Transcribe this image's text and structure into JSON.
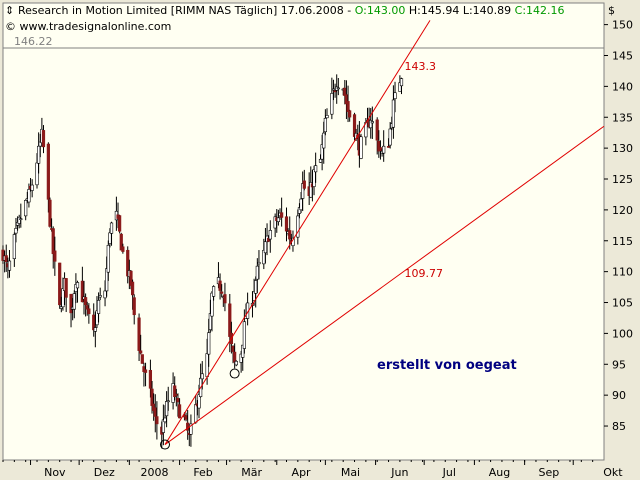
{
  "header": {
    "title_prefix": "Research in Motion Limited [RIMM NAS  Täglich] 17.06.2008 - ",
    "open": "O:143.00",
    "hlc": " H:145.94 L:140.89 ",
    "close": "C:142.16",
    "source": "© www.tradesignalonline.com",
    "currency": "$"
  },
  "colors": {
    "open_green": "#009900",
    "close_green": "#009900",
    "candle_up": "#000000",
    "candle_down": "#8b1a1a",
    "trendline": "#e00000",
    "label_red": "#cc0000",
    "note_blue": "#000080"
  },
  "annotations": {
    "hline_label": "146.22",
    "upper_trend_label": "143.3",
    "lower_trend_label": "109.77",
    "note": "erstellt von oegeat"
  },
  "chart_data": {
    "type": "candlestick",
    "x_labels": [
      "Nov",
      "Dez",
      "2008",
      "Feb",
      "Mär",
      "Apr",
      "Mai",
      "Jun",
      "Jul",
      "Aug",
      "Sep",
      "Okt"
    ],
    "x_label_dates": [
      "2007-11-01",
      "2007-12-01",
      "2008-01-01",
      "2008-02-01",
      "2008-03-01",
      "2008-04-01",
      "2008-05-01",
      "2008-06-01",
      "2008-07-01",
      "2008-08-01",
      "2008-09-01",
      "2008-10-01"
    ],
    "y_ticks": [
      85,
      90,
      95,
      100,
      105,
      110,
      115,
      120,
      125,
      130,
      135,
      140,
      145,
      150
    ],
    "ylim": [
      79.5,
      153.5
    ],
    "hline": 146.22,
    "trendlines": [
      {
        "points": [
          [
            "2008-01-23",
            82
          ],
          [
            "2008-03-06",
            93.5
          ],
          [
            "2008-06-17",
            143.3
          ]
        ]
      },
      {
        "points": [
          [
            "2008-01-23",
            82
          ],
          [
            "2008-06-17",
            109.77
          ]
        ]
      }
    ],
    "pivots": [
      [
        "2008-01-23",
        82
      ],
      [
        "2008-03-06",
        93.5
      ]
    ],
    "close_series": [
      [
        "2007-10-15",
        113
      ],
      [
        "2007-10-18",
        110
      ],
      [
        "2007-10-22",
        115
      ],
      [
        "2007-10-25",
        118
      ],
      [
        "2007-10-29",
        121
      ],
      [
        "2007-11-01",
        123
      ],
      [
        "2007-11-05",
        128
      ],
      [
        "2007-11-08",
        132
      ],
      [
        "2007-11-09",
        130
      ],
      [
        "2007-11-12",
        121
      ],
      [
        "2007-11-15",
        113
      ],
      [
        "2007-11-19",
        104
      ],
      [
        "2007-11-22",
        108
      ],
      [
        "2007-11-26",
        103
      ],
      [
        "2007-11-29",
        109
      ],
      [
        "2007-12-03",
        106
      ],
      [
        "2007-12-06",
        103
      ],
      [
        "2007-12-10",
        100
      ],
      [
        "2007-12-13",
        105
      ],
      [
        "2007-12-17",
        107
      ],
      [
        "2007-12-20",
        117
      ],
      [
        "2007-12-24",
        119
      ],
      [
        "2007-12-28",
        113
      ],
      [
        "2008-01-02",
        108
      ],
      [
        "2008-01-04",
        103
      ],
      [
        "2008-01-07",
        98
      ],
      [
        "2008-01-10",
        94
      ],
      [
        "2008-01-14",
        90
      ],
      [
        "2008-01-17",
        86
      ],
      [
        "2008-01-21",
        84
      ],
      [
        "2008-01-23",
        87
      ],
      [
        "2008-01-25",
        89
      ],
      [
        "2008-01-28",
        91
      ],
      [
        "2008-01-31",
        88
      ],
      [
        "2008-02-04",
        86
      ],
      [
        "2008-02-07",
        83
      ],
      [
        "2008-02-11",
        88
      ],
      [
        "2008-02-14",
        92
      ],
      [
        "2008-02-18",
        96
      ],
      [
        "2008-02-21",
        106
      ],
      [
        "2008-02-25",
        108
      ],
      [
        "2008-02-28",
        107
      ],
      [
        "2008-03-03",
        99
      ],
      [
        "2008-03-06",
        95
      ],
      [
        "2008-03-10",
        97
      ],
      [
        "2008-03-13",
        103
      ],
      [
        "2008-03-17",
        106
      ],
      [
        "2008-03-20",
        110
      ],
      [
        "2008-03-24",
        113
      ],
      [
        "2008-03-27",
        116
      ],
      [
        "2008-03-31",
        118
      ],
      [
        "2008-04-03",
        119
      ],
      [
        "2008-04-07",
        117
      ],
      [
        "2008-04-10",
        115
      ],
      [
        "2008-04-14",
        120
      ],
      [
        "2008-04-17",
        124
      ],
      [
        "2008-04-21",
        122
      ],
      [
        "2008-04-24",
        126
      ],
      [
        "2008-04-28",
        128
      ],
      [
        "2008-05-01",
        134
      ],
      [
        "2008-05-05",
        138
      ],
      [
        "2008-05-08",
        141
      ],
      [
        "2008-05-12",
        140
      ],
      [
        "2008-05-15",
        136
      ],
      [
        "2008-05-19",
        133
      ],
      [
        "2008-05-22",
        130
      ],
      [
        "2008-05-26",
        133
      ],
      [
        "2008-05-29",
        135
      ],
      [
        "2008-06-02",
        131
      ],
      [
        "2008-06-05",
        129
      ],
      [
        "2008-06-09",
        131
      ],
      [
        "2008-06-12",
        137
      ],
      [
        "2008-06-17",
        142.16
      ]
    ]
  }
}
